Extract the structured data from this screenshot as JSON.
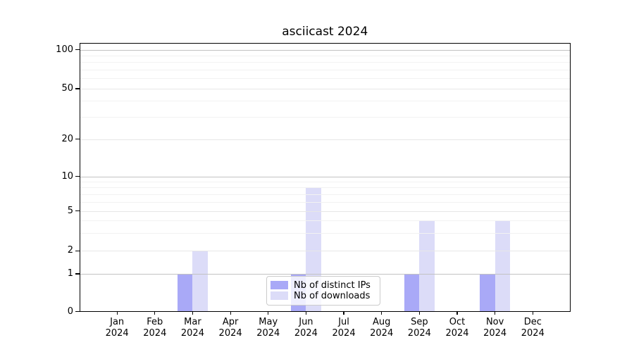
{
  "figure": {
    "title": "asciicast 2024"
  },
  "chart_data": {
    "type": "bar",
    "title": "asciicast 2024",
    "y_scale": "log-like",
    "ylim": [
      0,
      113
    ],
    "y_ticks": [
      0,
      1,
      2,
      5,
      10,
      20,
      50,
      100
    ],
    "x_tick_labels": [
      [
        "Jan",
        "2024"
      ],
      [
        "Feb",
        "2024"
      ],
      [
        "Mar",
        "2024"
      ],
      [
        "Apr",
        "2024"
      ],
      [
        "May",
        "2024"
      ],
      [
        "Jun",
        "2024"
      ],
      [
        "Jul",
        "2024"
      ],
      [
        "Aug",
        "2024"
      ],
      [
        "Sep",
        "2024"
      ],
      [
        "Oct",
        "2024"
      ],
      [
        "Nov",
        "2024"
      ],
      [
        "Dec",
        "2024"
      ]
    ],
    "categories": [
      "Jan 2024",
      "Feb 2024",
      "Mar 2024",
      "Apr 2024",
      "May 2024",
      "Jun 2024",
      "Jul 2024",
      "Aug 2024",
      "Sep 2024",
      "Oct 2024",
      "Nov 2024",
      "Dec 2024"
    ],
    "series": [
      {
        "name": "Nb of distinct IPs",
        "color": "#a9a9f7",
        "values": [
          0,
          0,
          1,
          0,
          0,
          1,
          0,
          0,
          1,
          0,
          1,
          0
        ]
      },
      {
        "name": "Nb of downloads",
        "color": "#dcdcf8",
        "values": [
          0,
          0,
          2,
          0,
          0,
          8,
          0,
          0,
          4,
          0,
          4,
          0
        ]
      }
    ],
    "legend": {
      "position": "lower center"
    },
    "grid": {
      "decade_lines": [
        1,
        10,
        100
      ],
      "light_lines": [
        2,
        5,
        20,
        50
      ],
      "minor_lines": [
        3,
        4,
        6,
        7,
        8,
        9,
        30,
        40,
        60,
        70,
        80,
        90
      ]
    },
    "colors": {
      "grid_decade": "#c2c2c2",
      "grid_light": "#e7e7e7",
      "grid_minor": "#f2f2f2",
      "axis": "#000000",
      "background": "#ffffff"
    }
  }
}
